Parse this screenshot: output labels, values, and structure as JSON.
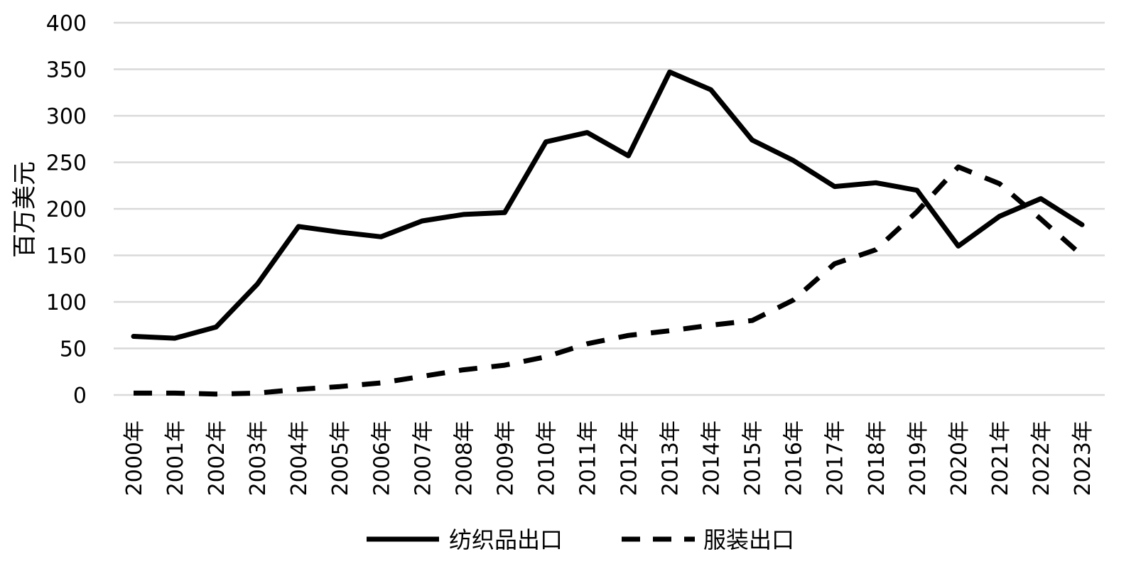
{
  "chart_data": {
    "type": "line",
    "title": "",
    "xlabel": "",
    "ylabel": "百万美元",
    "ylim": [
      0,
      400
    ],
    "yticks": [
      "0",
      "50",
      "100",
      "150",
      "200",
      "250",
      "300",
      "350",
      "400"
    ],
    "grid": true,
    "legend_position": "bottom",
    "categories": [
      "2000年",
      "2001年",
      "2002年",
      "2003年",
      "2004年",
      "2005年",
      "2006年",
      "2007年",
      "2008年",
      "2009年",
      "2010年",
      "2011年",
      "2012年",
      "2013年",
      "2014年",
      "2015年",
      "2016年",
      "2017年",
      "2018年",
      "2019年",
      "2020年",
      "2021年",
      "2022年",
      "2023年"
    ],
    "series": [
      {
        "name": "纺织品出口",
        "style": "solid",
        "color": "#000000",
        "values": [
          63,
          61,
          73,
          119,
          181,
          175,
          170,
          187,
          194,
          196,
          272,
          282,
          257,
          347,
          328,
          274,
          252,
          224,
          228,
          220,
          160,
          192,
          211,
          183
        ]
      },
      {
        "name": "服装出口",
        "style": "dashed",
        "color": "#000000",
        "values": [
          2,
          2,
          1,
          2,
          6,
          9,
          13,
          20,
          27,
          32,
          41,
          55,
          64,
          69,
          75,
          80,
          102,
          141,
          156,
          197,
          245,
          227,
          189,
          150
        ]
      }
    ]
  }
}
